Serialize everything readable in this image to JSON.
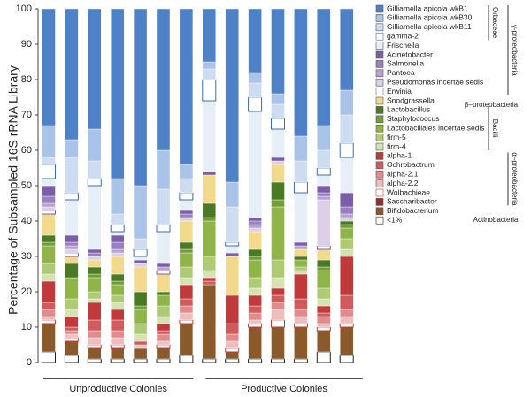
{
  "chart_data": {
    "type": "stacked_bar",
    "y_label": "Percentage of Subsampled 16S rRNA Library",
    "categories": [
      null,
      null,
      null,
      null,
      null,
      null,
      null,
      null,
      null,
      null,
      null,
      null,
      null,
      null
    ],
    "groups": [
      "Unproductive Colonies",
      "Productive Colonies"
    ],
    "ylim": [
      0,
      100
    ],
    "yticks": [
      0,
      10,
      20,
      30,
      40,
      50,
      60,
      70,
      80,
      90,
      100
    ],
    "brackets": [
      "Orbaceae",
      "γ-proteobacteria",
      "β–proteobacteria",
      "Bacilli",
      "α–proteobacteria",
      "Actinobacteria"
    ],
    "series": [
      {
        "name": "Gilliamella apicola wkB1",
        "color": "#4f81c7",
        "values": [
          33,
          37,
          34,
          48,
          50,
          40,
          44,
          15,
          49,
          18,
          24,
          36,
          33,
          23
        ]
      },
      {
        "name": "Gilliamella apicola wkB30",
        "color": "#a9c4e8",
        "values": [
          9,
          5,
          9,
          10,
          15,
          11,
          4,
          2,
          7,
          3,
          3,
          7,
          7,
          7
        ]
      },
      {
        "name": "Gilliamella apicola wkB11",
        "color": "#cddcf0",
        "values": [
          2,
          10,
          5,
          3,
          3,
          10,
          4,
          3,
          10,
          4,
          4,
          6,
          5,
          8
        ]
      },
      {
        "name": "gamma-2",
        "color": "#ffffff",
        "border": "#3b6cb5",
        "values": [
          4,
          2,
          2,
          2,
          2,
          2,
          2,
          6,
          1,
          4,
          3,
          3,
          2,
          4
        ]
      },
      {
        "name": "Frischella",
        "color": "#e6eef8",
        "values": [
          2,
          10,
          18,
          1,
          1,
          9,
          3,
          20,
          2,
          30,
          8,
          14,
          3,
          10
        ]
      },
      {
        "name": "Acinetobacter",
        "color": "#7b5ea7",
        "values": [
          3,
          2,
          1,
          2,
          1,
          1,
          1,
          1,
          1,
          1,
          1,
          1,
          2,
          4
        ]
      },
      {
        "name": "Salmonella",
        "color": "#9a7fc2",
        "values": [
          2,
          1,
          1,
          2,
          0,
          0,
          1,
          0,
          0,
          1,
          0,
          0,
          1,
          2
        ]
      },
      {
        "name": "Pantoea",
        "color": "#b6a0d4",
        "values": [
          1,
          1,
          0,
          1,
          0,
          1,
          0,
          0,
          0,
          1,
          0,
          1,
          1,
          1
        ]
      },
      {
        "name": "Pseudomonas incertae sedis",
        "color": "#dccfe9",
        "values": [
          1,
          1,
          1,
          1,
          1,
          0,
          1,
          0,
          0,
          1,
          1,
          0,
          13,
          1
        ]
      },
      {
        "name": "Erwinia",
        "color": "#ffffff",
        "border": "#7b5ea7",
        "values": [
          1,
          1,
          0,
          0,
          0,
          1,
          0,
          0,
          0,
          0,
          0,
          0,
          1,
          0
        ]
      },
      {
        "name": "Snodgrassella",
        "color": "#f3d98c",
        "values": [
          6,
          2,
          2,
          5,
          7,
          5,
          6,
          8,
          11,
          5,
          5,
          2,
          3,
          0
        ]
      },
      {
        "name": "Lactobacillus",
        "color": "#4b7a25",
        "values": [
          2,
          4,
          2,
          2,
          4,
          1,
          2,
          4,
          0,
          2,
          5,
          1,
          2,
          1
        ]
      },
      {
        "name": "Staphylococcus",
        "color": "#6f9e36",
        "values": [
          1,
          0,
          1,
          1,
          1,
          0,
          1,
          1,
          0,
          1,
          2,
          0,
          1,
          1
        ]
      },
      {
        "name": "Lactobacillales incertae sedis",
        "color": "#8fb548",
        "values": [
          5,
          6,
          4,
          3,
          4,
          3,
          4,
          10,
          0,
          5,
          15,
          2,
          5,
          3
        ]
      },
      {
        "name": "firm-5",
        "color": "#aecb74",
        "values": [
          3,
          3,
          2,
          2,
          3,
          3,
          3,
          4,
          0,
          3,
          5,
          1,
          3,
          3
        ]
      },
      {
        "name": "firm-4",
        "color": "#d3e3b2",
        "values": [
          2,
          2,
          1,
          2,
          2,
          2,
          2,
          2,
          0,
          2,
          3,
          1,
          2,
          2
        ]
      },
      {
        "name": "alpha-1",
        "color": "#c0393b",
        "values": [
          6,
          3,
          5,
          3,
          0,
          2,
          4,
          1,
          8,
          3,
          2,
          7,
          2,
          11
        ]
      },
      {
        "name": "Ochrobactrum",
        "color": "#d25a5c",
        "values": [
          2,
          1,
          3,
          3,
          1,
          1,
          2,
          1,
          3,
          2,
          2,
          3,
          1,
          4
        ]
      },
      {
        "name": "alpha-2.1",
        "color": "#e28a8c",
        "values": [
          2,
          1,
          2,
          2,
          0,
          2,
          2,
          0,
          2,
          2,
          2,
          2,
          2,
          2
        ]
      },
      {
        "name": "alpha-2.2",
        "color": "#f1bcbd",
        "values": [
          1,
          1,
          2,
          2,
          1,
          1,
          2,
          0,
          2,
          1,
          3,
          2,
          1,
          2
        ]
      },
      {
        "name": "Wolbachieae",
        "color": "#ffffff",
        "border": "#c0393b",
        "values": [
          1,
          1,
          1,
          1,
          0,
          1,
          1,
          0,
          1,
          1,
          2,
          1,
          1,
          1
        ]
      },
      {
        "name": "Saccharibacter",
        "color": "#9c2b2b",
        "values": [
          0,
          0,
          0,
          0,
          0,
          0,
          0,
          0,
          0,
          0,
          0,
          0,
          0,
          0
        ]
      },
      {
        "name": "Bifidobacterium",
        "color": "#8b5a2b",
        "values": [
          8,
          4,
          3,
          3,
          3,
          3,
          9,
          21,
          2,
          9,
          9,
          9,
          6,
          8
        ]
      },
      {
        "name": "<1%",
        "color": "#ffffff",
        "border": "#222222",
        "values": [
          3,
          2,
          1,
          1,
          1,
          1,
          2,
          1,
          1,
          1,
          1,
          1,
          3,
          2
        ]
      }
    ]
  }
}
